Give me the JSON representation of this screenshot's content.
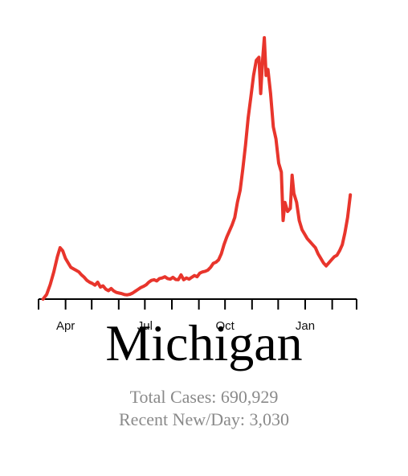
{
  "title": "Michigan",
  "stats": {
    "total_cases": "Total Cases: 690,929",
    "recent_new_per_day": "Recent New/Day: 3,030"
  },
  "colors": {
    "line": "#e8352c",
    "axis": "#000000",
    "stats_text": "#8a8a8a"
  },
  "chart_data": {
    "type": "line",
    "x_unit": "date",
    "y_unit": "new cases per day",
    "xlim": [
      "2020-03-10",
      "2021-02-28"
    ],
    "ylim": [
      0,
      8700
    ],
    "grid": false,
    "ticks": [
      {
        "date": "2020-03-01",
        "label": ""
      },
      {
        "date": "2020-04-01",
        "label": "Apr"
      },
      {
        "date": "2020-05-01",
        "label": ""
      },
      {
        "date": "2020-06-01",
        "label": ""
      },
      {
        "date": "2020-07-01",
        "label": "Jul"
      },
      {
        "date": "2020-08-01",
        "label": ""
      },
      {
        "date": "2020-09-01",
        "label": ""
      },
      {
        "date": "2020-10-01",
        "label": "Oct"
      },
      {
        "date": "2020-11-01",
        "label": ""
      },
      {
        "date": "2020-12-01",
        "label": ""
      },
      {
        "date": "2021-01-01",
        "label": "Jan"
      },
      {
        "date": "2021-02-01",
        "label": ""
      },
      {
        "date": "2021-03-01",
        "label": ""
      }
    ],
    "series": [
      {
        "points": [
          [
            "2020-03-15",
            0
          ],
          [
            "2020-03-19",
            150
          ],
          [
            "2020-03-23",
            480
          ],
          [
            "2020-03-27",
            900
          ],
          [
            "2020-03-31",
            1400
          ],
          [
            "2020-04-03",
            1700
          ],
          [
            "2020-04-06",
            1600
          ],
          [
            "2020-04-09",
            1350
          ],
          [
            "2020-04-12",
            1200
          ],
          [
            "2020-04-15",
            1050
          ],
          [
            "2020-04-18",
            1000
          ],
          [
            "2020-04-21",
            950
          ],
          [
            "2020-04-24",
            900
          ],
          [
            "2020-04-27",
            800
          ],
          [
            "2020-04-30",
            720
          ],
          [
            "2020-05-03",
            620
          ],
          [
            "2020-05-06",
            560
          ],
          [
            "2020-05-09",
            520
          ],
          [
            "2020-05-12",
            460
          ],
          [
            "2020-05-15",
            560
          ],
          [
            "2020-05-18",
            400
          ],
          [
            "2020-05-21",
            440
          ],
          [
            "2020-05-24",
            330
          ],
          [
            "2020-05-27",
            280
          ],
          [
            "2020-05-30",
            350
          ],
          [
            "2020-06-02",
            270
          ],
          [
            "2020-06-05",
            220
          ],
          [
            "2020-06-08",
            200
          ],
          [
            "2020-06-11",
            180
          ],
          [
            "2020-06-14",
            150
          ],
          [
            "2020-06-17",
            140
          ],
          [
            "2020-06-20",
            160
          ],
          [
            "2020-06-23",
            200
          ],
          [
            "2020-06-26",
            260
          ],
          [
            "2020-06-29",
            320
          ],
          [
            "2020-07-02",
            380
          ],
          [
            "2020-07-05",
            420
          ],
          [
            "2020-07-08",
            470
          ],
          [
            "2020-07-11",
            560
          ],
          [
            "2020-07-14",
            620
          ],
          [
            "2020-07-17",
            640
          ],
          [
            "2020-07-20",
            600
          ],
          [
            "2020-07-23",
            680
          ],
          [
            "2020-07-26",
            700
          ],
          [
            "2020-07-29",
            740
          ],
          [
            "2020-08-01",
            680
          ],
          [
            "2020-08-04",
            660
          ],
          [
            "2020-08-07",
            720
          ],
          [
            "2020-08-10",
            650
          ],
          [
            "2020-08-13",
            640
          ],
          [
            "2020-08-16",
            800
          ],
          [
            "2020-08-19",
            640
          ],
          [
            "2020-08-22",
            700
          ],
          [
            "2020-08-25",
            660
          ],
          [
            "2020-08-28",
            720
          ],
          [
            "2020-08-31",
            780
          ],
          [
            "2020-09-03",
            740
          ],
          [
            "2020-09-06",
            860
          ],
          [
            "2020-09-09",
            900
          ],
          [
            "2020-09-12",
            920
          ],
          [
            "2020-09-15",
            960
          ],
          [
            "2020-09-18",
            1050
          ],
          [
            "2020-09-21",
            1180
          ],
          [
            "2020-09-24",
            1220
          ],
          [
            "2020-09-27",
            1300
          ],
          [
            "2020-09-30",
            1500
          ],
          [
            "2020-10-03",
            1800
          ],
          [
            "2020-10-06",
            2050
          ],
          [
            "2020-10-09",
            2250
          ],
          [
            "2020-10-12",
            2450
          ],
          [
            "2020-10-15",
            2700
          ],
          [
            "2020-10-18",
            3200
          ],
          [
            "2020-10-21",
            3600
          ],
          [
            "2020-10-24",
            4300
          ],
          [
            "2020-10-27",
            5100
          ],
          [
            "2020-10-30",
            6000
          ],
          [
            "2020-11-02",
            6700
          ],
          [
            "2020-11-05",
            7400
          ],
          [
            "2020-11-08",
            7900
          ],
          [
            "2020-11-11",
            8000
          ],
          [
            "2020-11-13",
            6800
          ],
          [
            "2020-11-15",
            7900
          ],
          [
            "2020-11-17",
            8650
          ],
          [
            "2020-11-19",
            7400
          ],
          [
            "2020-11-21",
            7600
          ],
          [
            "2020-11-24",
            6800
          ],
          [
            "2020-11-27",
            5700
          ],
          [
            "2020-11-30",
            5300
          ],
          [
            "2020-12-03",
            4500
          ],
          [
            "2020-12-06",
            4200
          ],
          [
            "2020-12-08",
            2600
          ],
          [
            "2020-12-10",
            3200
          ],
          [
            "2020-12-13",
            2900
          ],
          [
            "2020-12-16",
            3000
          ],
          [
            "2020-12-18",
            4100
          ],
          [
            "2020-12-20",
            3500
          ],
          [
            "2020-12-23",
            3200
          ],
          [
            "2020-12-26",
            2600
          ],
          [
            "2020-12-29",
            2300
          ],
          [
            "2021-01-01",
            2150
          ],
          [
            "2021-01-04",
            2000
          ],
          [
            "2021-01-07",
            1900
          ],
          [
            "2021-01-10",
            1800
          ],
          [
            "2021-01-13",
            1700
          ],
          [
            "2021-01-16",
            1500
          ],
          [
            "2021-01-19",
            1350
          ],
          [
            "2021-01-22",
            1200
          ],
          [
            "2021-01-25",
            1100
          ],
          [
            "2021-01-28",
            1200
          ],
          [
            "2021-01-31",
            1300
          ],
          [
            "2021-02-03",
            1400
          ],
          [
            "2021-02-06",
            1450
          ],
          [
            "2021-02-09",
            1600
          ],
          [
            "2021-02-12",
            1800
          ],
          [
            "2021-02-15",
            2200
          ],
          [
            "2021-02-18",
            2700
          ],
          [
            "2021-02-21",
            3450
          ]
        ]
      }
    ]
  }
}
